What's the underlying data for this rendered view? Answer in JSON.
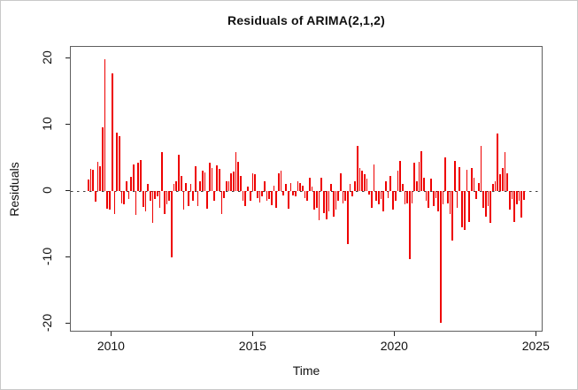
{
  "chart_data": {
    "type": "bar",
    "title": "Residuals of ARIMA(2,1,2)",
    "xlabel": "Time",
    "ylabel": "Residuals",
    "x_start": 2009.17,
    "x_step": 0.08404,
    "xlim": [
      2008.55,
      2025.24
    ],
    "ylim": [
      -21.3,
      21.7
    ],
    "x_ticks": [
      2010,
      2015,
      2020,
      2025
    ],
    "y_ticks": [
      -20,
      -10,
      0,
      10,
      20
    ],
    "grid": false,
    "legend": "none",
    "zero_line_style": "dashed",
    "bar_color": "#ee0000",
    "axis_color": "#5f5f5f",
    "text_color": "#111111",
    "values": [
      1.7,
      3.3,
      3.2,
      -1.6,
      4.4,
      3.7,
      9.6,
      19.8,
      -2.6,
      -2.8,
      17.7,
      -3.5,
      8.8,
      8.3,
      -1.8,
      -2.0,
      1.5,
      -1.2,
      2.1,
      4.0,
      -3.6,
      4.3,
      4.6,
      -2.4,
      -3.0,
      1.0,
      -1.5,
      -4.8,
      -1.2,
      -0.8,
      -2.5,
      5.8,
      -3.4,
      -2.0,
      -1.5,
      -10.0,
      1.0,
      1.5,
      5.4,
      2.3,
      -2.8,
      1.2,
      -2.3,
      1.0,
      -1.4,
      3.7,
      -2.2,
      1.5,
      3.0,
      2.8,
      -2.7,
      4.2,
      3.4,
      -1.5,
      3.8,
      3.3,
      -3.5,
      -1.0,
      1.5,
      1.4,
      2.7,
      2.9,
      5.8,
      4.4,
      2.3,
      -1.5,
      -2.2,
      0.6,
      -1.5,
      2.6,
      2.5,
      -1.0,
      -1.7,
      -0.8,
      1.4,
      -1.5,
      -1.2,
      -2.1,
      0.8,
      -2.5,
      2.6,
      3.0,
      -0.7,
      1.0,
      -2.7,
      1.2,
      -0.6,
      -0.8,
      1.5,
      1.2,
      0.8,
      -1.0,
      -1.5,
      2.0,
      0.6,
      -2.8,
      -2.5,
      -4.4,
      2.0,
      -3.3,
      -4.2,
      -3.0,
      1.0,
      -3.8,
      -2.8,
      -1.5,
      2.6,
      -1.8,
      -1.5,
      -8.0,
      1.0,
      -0.8,
      1.5,
      6.8,
      3.4,
      3.0,
      2.5,
      1.8,
      -0.5,
      -2.5,
      4.0,
      -1.5,
      -2.0,
      -1.2,
      -3.0,
      1.5,
      -1.0,
      2.2,
      -2.8,
      -1.5,
      3.0,
      4.5,
      1.0,
      -2.0,
      -1.8,
      -10.3,
      -1.8,
      4.2,
      1.5,
      4.4,
      6.0,
      2.0,
      -1.5,
      -2.5,
      1.8,
      -2.2,
      -1.0,
      -3.0,
      -19.8,
      -2.0,
      5.0,
      -1.8,
      -3.5,
      -7.5,
      4.5,
      -2.5,
      3.6,
      -5.5,
      -5.8,
      3.2,
      -4.6,
      3.4,
      2.0,
      -1.2,
      1.2,
      6.8,
      -2.5,
      -3.8,
      -2.2,
      -4.8,
      1.0,
      1.5,
      8.6,
      2.5,
      3.5,
      5.8,
      2.6,
      -2.8,
      -1.2,
      -4.6,
      -2.0,
      -1.5,
      -4.0,
      -1.3
    ]
  }
}
